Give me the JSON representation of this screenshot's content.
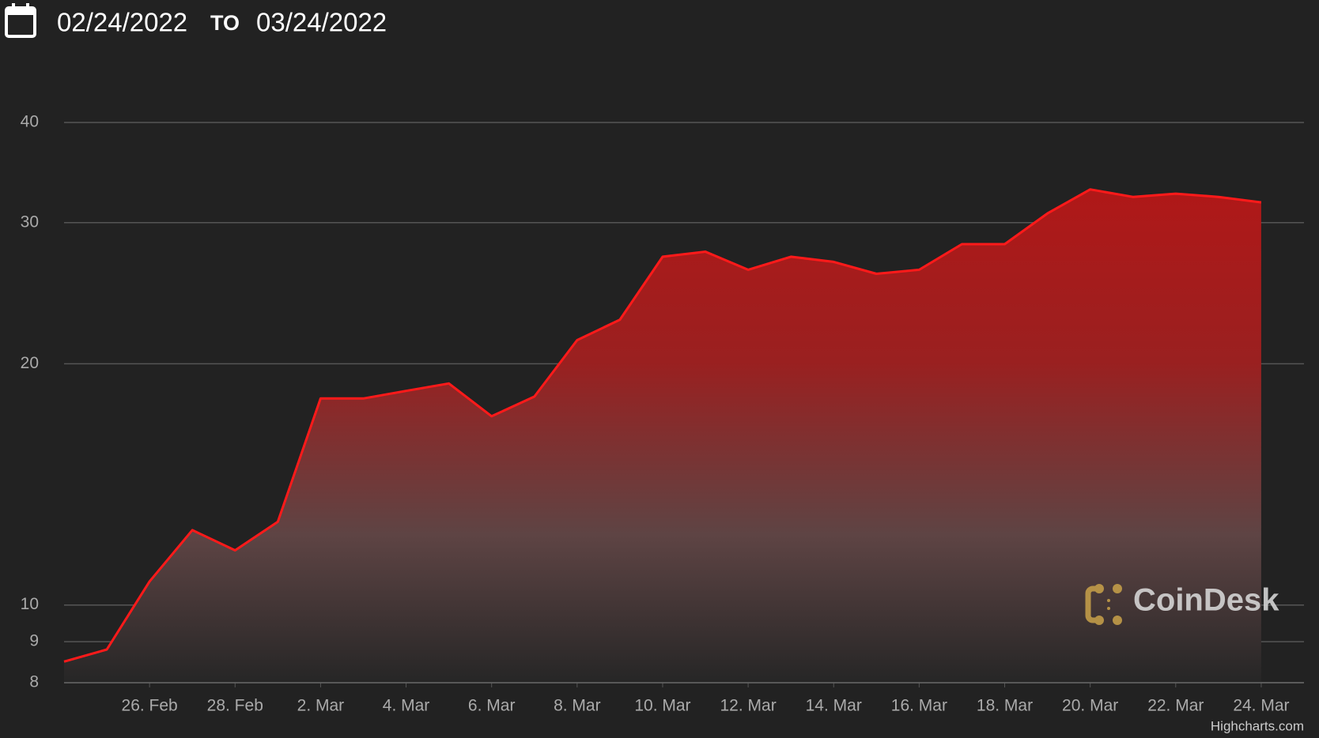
{
  "header": {
    "from_date": "02/24/2022",
    "separator": "TO",
    "to_date": "03/24/2022"
  },
  "chart_data": {
    "type": "area",
    "log_scale": true,
    "grid": true,
    "color": "#ff1a1a",
    "x": [
      "2022-02-24",
      "2022-02-25",
      "2022-02-26",
      "2022-02-27",
      "2022-02-28",
      "2022-03-01",
      "2022-03-02",
      "2022-03-03",
      "2022-03-04",
      "2022-03-05",
      "2022-03-06",
      "2022-03-07",
      "2022-03-08",
      "2022-03-09",
      "2022-03-10",
      "2022-03-11",
      "2022-03-12",
      "2022-03-13",
      "2022-03-14",
      "2022-03-15",
      "2022-03-16",
      "2022-03-17",
      "2022-03-18",
      "2022-03-19",
      "2022-03-20",
      "2022-03-21",
      "2022-03-22",
      "2022-03-23",
      "2022-03-24"
    ],
    "values": [
      8.5,
      8.8,
      10.7,
      12.4,
      11.7,
      12.7,
      18.1,
      18.1,
      18.5,
      18.9,
      17.2,
      18.2,
      21.4,
      22.7,
      27.2,
      27.6,
      26.2,
      27.2,
      26.8,
      25.9,
      26.2,
      28.2,
      28.2,
      30.8,
      33.0,
      32.3,
      32.6,
      32.3,
      31.8
    ],
    "xlim": [
      "2022-02-24",
      "2022-03-25"
    ],
    "xticks": [
      {
        "value": "2022-02-26",
        "label": "26. Feb"
      },
      {
        "value": "2022-02-28",
        "label": "28. Feb"
      },
      {
        "value": "2022-03-02",
        "label": "2. Mar"
      },
      {
        "value": "2022-03-04",
        "label": "4. Mar"
      },
      {
        "value": "2022-03-06",
        "label": "6. Mar"
      },
      {
        "value": "2022-03-08",
        "label": "8. Mar"
      },
      {
        "value": "2022-03-10",
        "label": "10. Mar"
      },
      {
        "value": "2022-03-12",
        "label": "12. Mar"
      },
      {
        "value": "2022-03-14",
        "label": "14. Mar"
      },
      {
        "value": "2022-03-16",
        "label": "16. Mar"
      },
      {
        "value": "2022-03-18",
        "label": "18. Mar"
      },
      {
        "value": "2022-03-20",
        "label": "20. Mar"
      },
      {
        "value": "2022-03-22",
        "label": "22. Mar"
      },
      {
        "value": "2022-03-24",
        "label": "24. Mar"
      }
    ],
    "ylim": [
      8,
      40
    ],
    "yticks": [
      8,
      9,
      10,
      20,
      30,
      40
    ],
    "watermark": "CoinDesk",
    "credit": "Highcharts.com"
  }
}
